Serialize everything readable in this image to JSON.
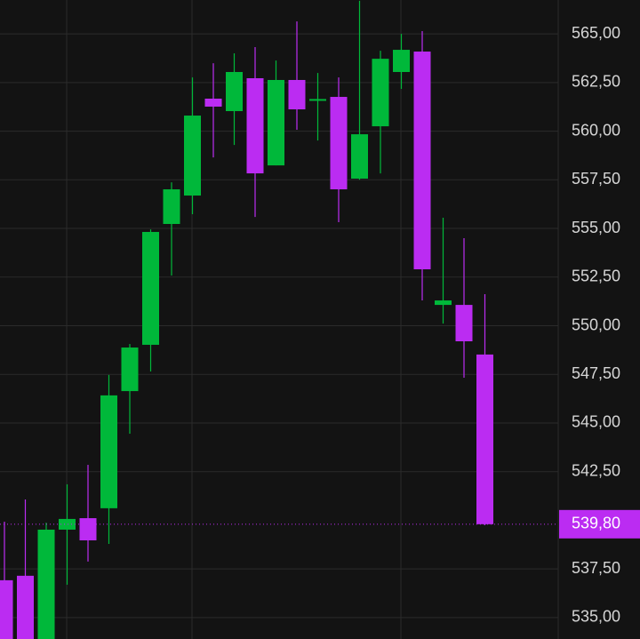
{
  "chart_data": {
    "type": "candlestick",
    "categories": [
      null,
      null,
      null,
      null,
      null,
      null,
      null,
      null,
      null,
      null,
      null,
      null,
      null,
      null,
      null,
      null,
      null,
      null,
      null,
      null,
      null,
      null,
      null,
      null
    ],
    "open": [
      536.92,
      537.15,
      533.5,
      539.52,
      540.11,
      540.62,
      546.64,
      549.02,
      555.23,
      556.69,
      561.67,
      561.03,
      562.72,
      558.24,
      562.63,
      561.6,
      561.76,
      557.56,
      560.25,
      563.04,
      564.09,
      551.07,
      551.07,
      548.52
    ],
    "high": [
      539.93,
      541.07,
      539.88,
      541.85,
      542.85,
      547.47,
      549.06,
      554.95,
      557.37,
      562.76,
      563.49,
      564.0,
      564.32,
      563.63,
      565.64,
      562.99,
      562.76,
      566.7,
      564.13,
      565.0,
      565.14,
      555.55,
      554.5,
      551.62
    ],
    "low": [
      533.9,
      533.5,
      533.4,
      536.69,
      537.88,
      538.79,
      544.45,
      547.65,
      552.58,
      555.73,
      558.65,
      559.29,
      555.59,
      558.24,
      560.07,
      559.52,
      555.32,
      557.5,
      557.83,
      562.17,
      551.3,
      550.11,
      547.33,
      539.75
    ],
    "close": [
      533.9,
      533.8,
      539.52,
      540.07,
      538.97,
      546.42,
      548.88,
      554.82,
      557.01,
      560.8,
      561.26,
      563.04,
      557.83,
      562.63,
      561.12,
      561.65,
      557.01,
      559.84,
      563.72,
      564.18,
      552.9,
      551.3,
      549.2,
      539.8
    ],
    "up_color": "#00b83a",
    "down_color": "#bb2cf2",
    "ylim": [
      533.9,
      566.74
    ],
    "yticks": [
      {
        "value": 535,
        "label": "535,00"
      },
      {
        "value": 537.5,
        "label": "537,50"
      },
      {
        "value": 542.5,
        "label": "542,50"
      },
      {
        "value": 545,
        "label": "545,00"
      },
      {
        "value": 547.5,
        "label": "547,50"
      },
      {
        "value": 550,
        "label": "550,00"
      },
      {
        "value": 552.5,
        "label": "552,50"
      },
      {
        "value": 555,
        "label": "555,00"
      },
      {
        "value": 557.5,
        "label": "557,50"
      },
      {
        "value": 560,
        "label": "560,00"
      },
      {
        "value": 562.5,
        "label": "562,50"
      },
      {
        "value": 565,
        "label": "565,00"
      }
    ],
    "last_price": {
      "value": 539.8,
      "label": "539,80"
    },
    "grid": true
  }
}
